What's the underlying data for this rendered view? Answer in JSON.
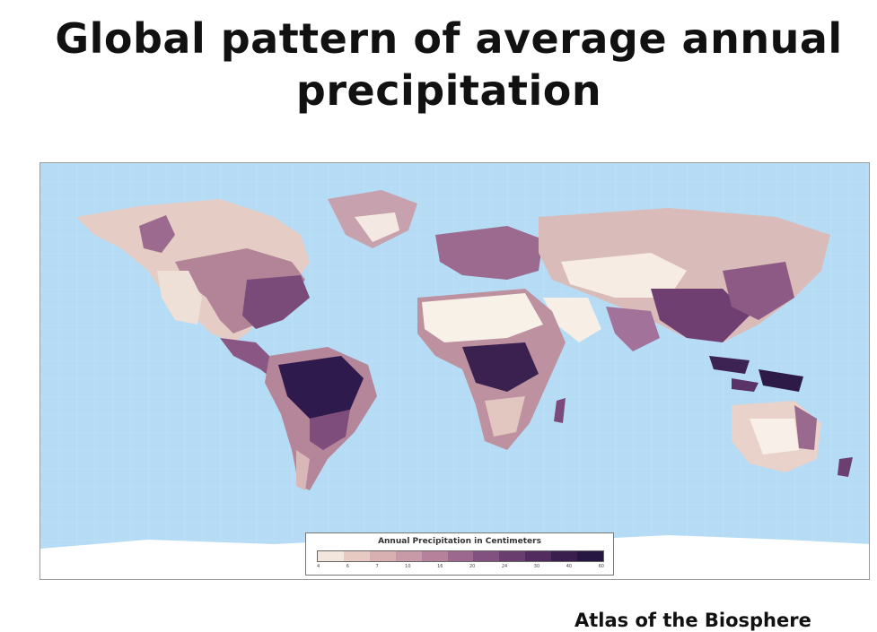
{
  "title": {
    "line1": "Global pattern of average annual",
    "line2": "precipitation"
  },
  "map": {
    "ocean_color": "#b5dcf4",
    "legend": {
      "title": "Annual Precipitation in Centimeters",
      "ticks": [
        "4",
        "6",
        "7",
        "10",
        "16",
        "20",
        "24",
        "30",
        "40",
        "60"
      ],
      "colors": [
        "#f3e6dc",
        "#e7cbc3",
        "#d8b0b2",
        "#c89aa8",
        "#b6819b",
        "#9d6890",
        "#83517f",
        "#693d6e",
        "#522c5e",
        "#3a1f4e",
        "#251642"
      ]
    }
  },
  "source": "Atlas of the Biosphere"
}
